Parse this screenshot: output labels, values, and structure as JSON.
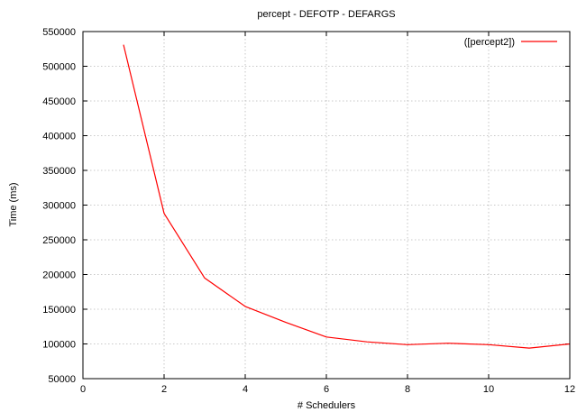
{
  "chart_data": {
    "type": "line",
    "title": "percept - DEFOTP - DEFARGS",
    "xlabel": "# Schedulers",
    "ylabel": "Time (ms)",
    "xlim": [
      0,
      12
    ],
    "ylim": [
      50000,
      550000
    ],
    "x_ticks": [
      0,
      2,
      4,
      6,
      8,
      10,
      12
    ],
    "y_ticks": [
      50000,
      100000,
      150000,
      200000,
      250000,
      300000,
      350000,
      400000,
      450000,
      500000,
      550000
    ],
    "grid": true,
    "legend_position": "top-right",
    "series": [
      {
        "name": "([percept2])",
        "color": "#ff0000",
        "x": [
          1,
          2,
          3,
          4,
          5,
          6,
          7,
          8,
          9,
          10,
          11,
          12
        ],
        "values": [
          531000,
          288000,
          195000,
          154000,
          131000,
          110000,
          103000,
          99000,
          101000,
          99000,
          94000,
          100000
        ]
      }
    ]
  }
}
